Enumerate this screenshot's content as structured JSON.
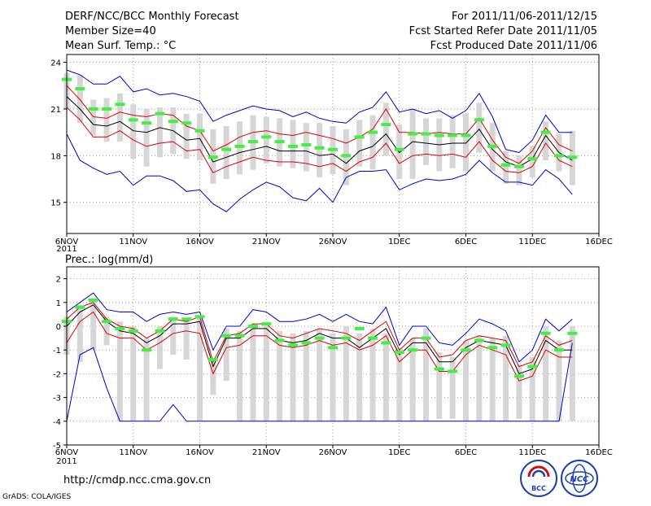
{
  "header": {
    "title": "DERF/NCC/BCC Monthly Forecast",
    "member_size": "Member Size=40",
    "variable": "Mean Surf. Temp.: °C",
    "forecast_period": "For 2011/11/06-2011/12/15",
    "refer_date": "Fcst Started Refer Date 2011/11/05",
    "produced_date": "Fcst Produced Date 2011/11/06"
  },
  "footer": {
    "url": "http://cmdp.ncc.cma.gov.cn",
    "grads": "GrADS: COLA/IGES",
    "logo_bcc": "BCC",
    "logo_ncc": "NCC"
  },
  "colors": {
    "max_min": "#0000cc",
    "spread": "#dd0000",
    "mean": "#000000",
    "median_marker": "#44ee44",
    "box": "#d6d6d6"
  },
  "chart_data": [
    {
      "type": "box-line",
      "title": "Mean Surf. Temp.: °C",
      "xlabel": "",
      "ylabel": "",
      "x_tick_labels": [
        "6NOV",
        "11NOV",
        "16NOV",
        "21NOV",
        "26NOV",
        "1DEC",
        "6DEC",
        "11DEC",
        "16DEC"
      ],
      "x_year_label": "2011",
      "ylim": [
        13,
        24.5
      ],
      "yticks": [
        "15",
        "18",
        "21",
        "24"
      ],
      "ytick_values": [
        15,
        18,
        21,
        24
      ],
      "grid": true,
      "day_range": [
        0,
        40
      ],
      "days": [
        0,
        1,
        2,
        3,
        4,
        5,
        6,
        7,
        8,
        9,
        10,
        11,
        12,
        13,
        14,
        15,
        16,
        17,
        18,
        19,
        20,
        21,
        22,
        23,
        24,
        25,
        26,
        27,
        28,
        29,
        30,
        31,
        32,
        33,
        34,
        35,
        36,
        37,
        38
      ],
      "series": [
        {
          "name": "max",
          "values": [
            23.5,
            23.2,
            22.6,
            22.6,
            23.1,
            22.1,
            22.3,
            21.9,
            22.0,
            21.8,
            21.5,
            20.2,
            20.6,
            20.9,
            21.2,
            21.0,
            20.9,
            20.5,
            20.8,
            20.4,
            20.2,
            20.1,
            20.8,
            21.1,
            22.1,
            20.8,
            21.0,
            20.7,
            20.9,
            20.4,
            20.9,
            22.0,
            20.5,
            18.4,
            18.2,
            19.0,
            20.6,
            19.5,
            19.5
          ]
        },
        {
          "name": "upper",
          "values": [
            22.5,
            21.6,
            20.5,
            20.4,
            20.8,
            20.6,
            20.5,
            20.7,
            20.6,
            19.9,
            19.6,
            18.3,
            18.7,
            19.2,
            19.5,
            19.6,
            19.4,
            19.3,
            19.5,
            19.3,
            19.1,
            18.8,
            19.2,
            19.7,
            21.0,
            19.5,
            19.5,
            19.4,
            19.5,
            19.4,
            19.4,
            20.4,
            19.0,
            17.9,
            17.5,
            18.3,
            19.8,
            18.7,
            18.3
          ]
        },
        {
          "name": "mean",
          "values": [
            21.8,
            21.0,
            20.0,
            19.9,
            20.2,
            19.6,
            19.5,
            19.8,
            19.6,
            19.0,
            19.1,
            17.6,
            17.9,
            18.2,
            18.4,
            18.6,
            18.3,
            18.3,
            18.3,
            18.0,
            18.1,
            17.5,
            18.3,
            18.6,
            19.4,
            18.2,
            18.9,
            18.8,
            18.7,
            18.8,
            18.8,
            19.7,
            18.4,
            17.6,
            17.3,
            17.8,
            19.3,
            18.2,
            17.7
          ]
        },
        {
          "name": "lower",
          "values": [
            21.1,
            20.3,
            19.2,
            19.2,
            19.6,
            19.0,
            18.6,
            18.8,
            18.9,
            18.3,
            18.4,
            16.9,
            17.3,
            17.6,
            17.9,
            17.7,
            17.6,
            17.6,
            17.5,
            17.3,
            17.5,
            17.0,
            17.6,
            17.9,
            18.8,
            17.5,
            18.0,
            18.1,
            18.0,
            18.1,
            17.9,
            18.9,
            17.7,
            17.0,
            16.9,
            17.3,
            18.8,
            17.7,
            17.3
          ]
        },
        {
          "name": "min",
          "values": [
            19.4,
            17.7,
            17.2,
            16.8,
            17.0,
            16.1,
            16.7,
            16.7,
            16.4,
            15.7,
            15.8,
            14.9,
            14.4,
            15.2,
            15.8,
            16.3,
            16.0,
            15.3,
            15.1,
            15.9,
            15.0,
            16.6,
            17.0,
            17.0,
            17.1,
            15.8,
            16.2,
            16.5,
            16.4,
            16.5,
            16.8,
            17.7,
            16.9,
            16.3,
            16.3,
            16.1,
            17.1,
            16.5,
            15.5
          ]
        },
        {
          "name": "median",
          "values": [
            22.9,
            22.3,
            21.0,
            21.0,
            21.3,
            20.3,
            20.1,
            20.7,
            20.2,
            20.1,
            19.6,
            17.9,
            18.4,
            18.6,
            18.9,
            19.2,
            18.9,
            18.6,
            18.7,
            18.5,
            18.4,
            18.0,
            19.2,
            19.5,
            20.0,
            18.4,
            19.4,
            19.4,
            19.3,
            19.3,
            19.3,
            20.3,
            18.6,
            17.4,
            17.3,
            17.8,
            19.5,
            18.0,
            17.9
          ]
        },
        {
          "name": "box_top",
          "values": [
            23.3,
            23.2,
            21.6,
            21.7,
            22.0,
            21.3,
            21.0,
            21.1,
            21.1,
            20.7,
            20.7,
            19.7,
            19.9,
            20.2,
            20.6,
            20.5,
            20.4,
            20.3,
            20.1,
            20.1,
            19.9,
            19.7,
            20.3,
            20.6,
            21.4,
            20.0,
            21.0,
            20.4,
            20.4,
            20.6,
            20.7,
            21.4,
            20.1,
            18.3,
            18.0,
            18.6,
            20.2,
            19.4,
            19.6
          ]
        },
        {
          "name": "box_bottom",
          "values": [
            21.0,
            20.1,
            19.3,
            18.9,
            18.9,
            17.8,
            17.3,
            17.9,
            18.1,
            17.8,
            17.7,
            16.2,
            16.5,
            16.8,
            17.1,
            17.5,
            17.3,
            17.2,
            17.0,
            16.6,
            16.8,
            16.1,
            17.3,
            17.1,
            18.0,
            16.5,
            16.5,
            17.4,
            17.0,
            17.2,
            17.0,
            18.2,
            17.0,
            16.2,
            16.1,
            16.6,
            17.7,
            17.0,
            16.1
          ]
        }
      ]
    },
    {
      "type": "box-line",
      "title": "Prec.: log(mm/d)",
      "xlabel": "",
      "ylabel": "",
      "x_tick_labels": [
        "6NOV",
        "11NOV",
        "16NOV",
        "21NOV",
        "26NOV",
        "1DEC",
        "6DEC",
        "11DEC",
        "16DEC"
      ],
      "x_year_label": "2011",
      "ylim": [
        -5,
        2.5
      ],
      "yticks": [
        "-5",
        "-4",
        "-3",
        "-2",
        "-1",
        "0",
        "1",
        "2"
      ],
      "ytick_values": [
        -5,
        -4,
        -3,
        -2,
        -1,
        0,
        1,
        2
      ],
      "grid": true,
      "day_range": [
        0,
        40
      ],
      "days": [
        0,
        1,
        2,
        3,
        4,
        5,
        6,
        7,
        8,
        9,
        10,
        11,
        12,
        13,
        14,
        15,
        16,
        17,
        18,
        19,
        20,
        21,
        22,
        23,
        24,
        25,
        26,
        27,
        28,
        29,
        30,
        31,
        32,
        33,
        34,
        35,
        36,
        37,
        38
      ],
      "series": [
        {
          "name": "max",
          "values": [
            0.6,
            1.0,
            1.4,
            0.7,
            0.6,
            0.6,
            0.2,
            0.5,
            0.6,
            0.5,
            0.6,
            -1.0,
            0.0,
            0.0,
            0.7,
            0.6,
            0.2,
            0.2,
            0.3,
            0.5,
            0.2,
            0.5,
            0.2,
            0.1,
            0.8,
            -0.8,
            0.0,
            0.0,
            -0.7,
            -0.8,
            -0.3,
            0.3,
            0.1,
            -0.2,
            -1.5,
            -1.0,
            0.3,
            -0.2,
            0.3
          ]
        },
        {
          "name": "upper",
          "values": [
            0.3,
            0.8,
            1.0,
            0.3,
            0.0,
            -0.1,
            -0.5,
            -0.2,
            0.3,
            0.2,
            0.4,
            -1.5,
            -0.4,
            -0.3,
            0.1,
            0.1,
            -0.4,
            -0.5,
            -0.3,
            -0.1,
            -0.2,
            -0.3,
            -0.6,
            -0.2,
            0.2,
            -1.0,
            -0.5,
            -0.5,
            -1.3,
            -1.2,
            -0.6,
            -0.4,
            -0.5,
            -0.6,
            -1.7,
            -1.5,
            -0.4,
            -0.8,
            -0.6
          ]
        },
        {
          "name": "mean",
          "values": [
            0.0,
            0.6,
            0.9,
            0.2,
            -0.2,
            -0.3,
            -0.7,
            -0.4,
            0.1,
            0.1,
            0.2,
            -1.7,
            -0.5,
            -0.5,
            -0.1,
            -0.1,
            -0.6,
            -0.7,
            -0.6,
            -0.3,
            -0.5,
            -0.5,
            -0.9,
            -0.5,
            -0.1,
            -1.2,
            -0.7,
            -0.7,
            -1.5,
            -1.5,
            -0.9,
            -0.6,
            -0.7,
            -0.8,
            -2.0,
            -1.8,
            -0.6,
            -1.0,
            -1.0
          ]
        },
        {
          "name": "lower",
          "values": [
            -0.7,
            0.2,
            0.6,
            -0.3,
            -0.5,
            -0.5,
            -1.0,
            -0.7,
            -0.3,
            -0.2,
            -0.3,
            -2.0,
            -0.9,
            -0.8,
            -0.4,
            -0.4,
            -0.8,
            -0.9,
            -0.8,
            -0.6,
            -0.8,
            -0.7,
            -1.0,
            -0.8,
            -0.4,
            -1.5,
            -1.0,
            -1.0,
            -1.9,
            -1.9,
            -1.2,
            -0.8,
            -1.0,
            -1.2,
            -2.3,
            -2.1,
            -1.0,
            -1.3,
            -1.3
          ]
        },
        {
          "name": "min",
          "values": [
            -4.0,
            -1.2,
            -0.9,
            -2.6,
            -4.0,
            -4.0,
            -4.0,
            -4.0,
            -3.3,
            -4.0,
            -4.0,
            -4.0,
            -4.0,
            -4.0,
            -4.0,
            -4.0,
            -4.0,
            -4.0,
            -4.0,
            -4.0,
            -4.0,
            -4.0,
            -4.0,
            -4.0,
            -4.0,
            -4.0,
            -4.0,
            -4.0,
            -4.0,
            -4.0,
            -4.0,
            -4.0,
            -4.0,
            -4.0,
            -4.0,
            -4.0,
            -4.0,
            -4.0,
            -0.7
          ]
        },
        {
          "name": "median",
          "values": [
            0.2,
            0.8,
            1.1,
            0.2,
            -0.1,
            -0.2,
            -1.0,
            -0.2,
            0.3,
            0.3,
            0.4,
            -1.4,
            -0.4,
            -0.4,
            0.0,
            0.1,
            -0.6,
            -0.8,
            -0.7,
            -0.5,
            -0.9,
            -0.5,
            -0.1,
            -0.5,
            -0.7,
            -1.1,
            -1.0,
            -0.5,
            -1.8,
            -1.9,
            -1.0,
            -0.6,
            -0.9,
            -0.8,
            -2.1,
            -1.7,
            -0.3,
            -1.0,
            -0.3
          ]
        },
        {
          "name": "box_top",
          "values": [
            0.4,
            0.9,
            1.1,
            0.4,
            0.2,
            0.0,
            -0.5,
            0.0,
            0.4,
            0.3,
            0.4,
            -1.4,
            -0.1,
            -0.2,
            0.1,
            0.1,
            -0.2,
            -0.3,
            -0.2,
            -0.1,
            -0.3,
            0.0,
            -0.3,
            -0.1,
            -0.3,
            -0.9,
            -0.5,
            -0.1,
            -1.1,
            -1.3,
            -0.6,
            -0.4,
            -0.5,
            -0.4,
            -1.6,
            -1.3,
            0.0,
            -0.6,
            0.0
          ]
        },
        {
          "name": "box_bottom",
          "values": [
            -1.2,
            -1.5,
            -1.0,
            -0.8,
            -4.0,
            -4.0,
            -4.0,
            -1.8,
            -1.2,
            -1.4,
            -4.0,
            -2.9,
            -2.3,
            -4.0,
            -4.0,
            -4.0,
            -4.0,
            -4.0,
            -4.0,
            -4.0,
            -4.0,
            -4.0,
            -4.0,
            -4.0,
            -4.0,
            -4.0,
            -4.0,
            -4.0,
            -3.9,
            -3.9,
            -4.0,
            -4.0,
            -4.0,
            -4.0,
            -3.9,
            -4.0,
            -4.0,
            -4.0,
            -4.0
          ]
        }
      ]
    }
  ]
}
